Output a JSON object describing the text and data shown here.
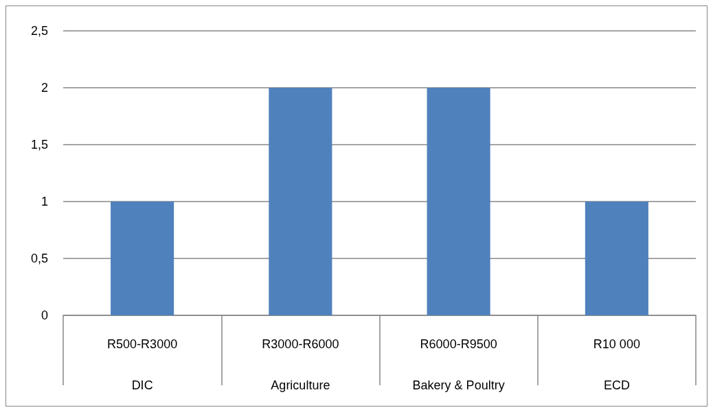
{
  "chart_data": {
    "type": "bar",
    "categories": [
      "R500-R3000\nDIC",
      "R3000-R6000\nAgriculture",
      "R6000-R9500\nBakery & Poultry",
      "R10 000\nECD"
    ],
    "values": [
      1,
      2,
      2,
      1
    ],
    "color": "#4f81bd",
    "ylim": [
      0,
      2.5
    ],
    "yticks": [
      0,
      {
        "value": 0.5,
        "label": "0,5"
      },
      1,
      {
        "value": 1.5,
        "label": "1,5"
      },
      2,
      {
        "value": 2.5,
        "label": "2,5"
      }
    ],
    "grid": "y"
  }
}
